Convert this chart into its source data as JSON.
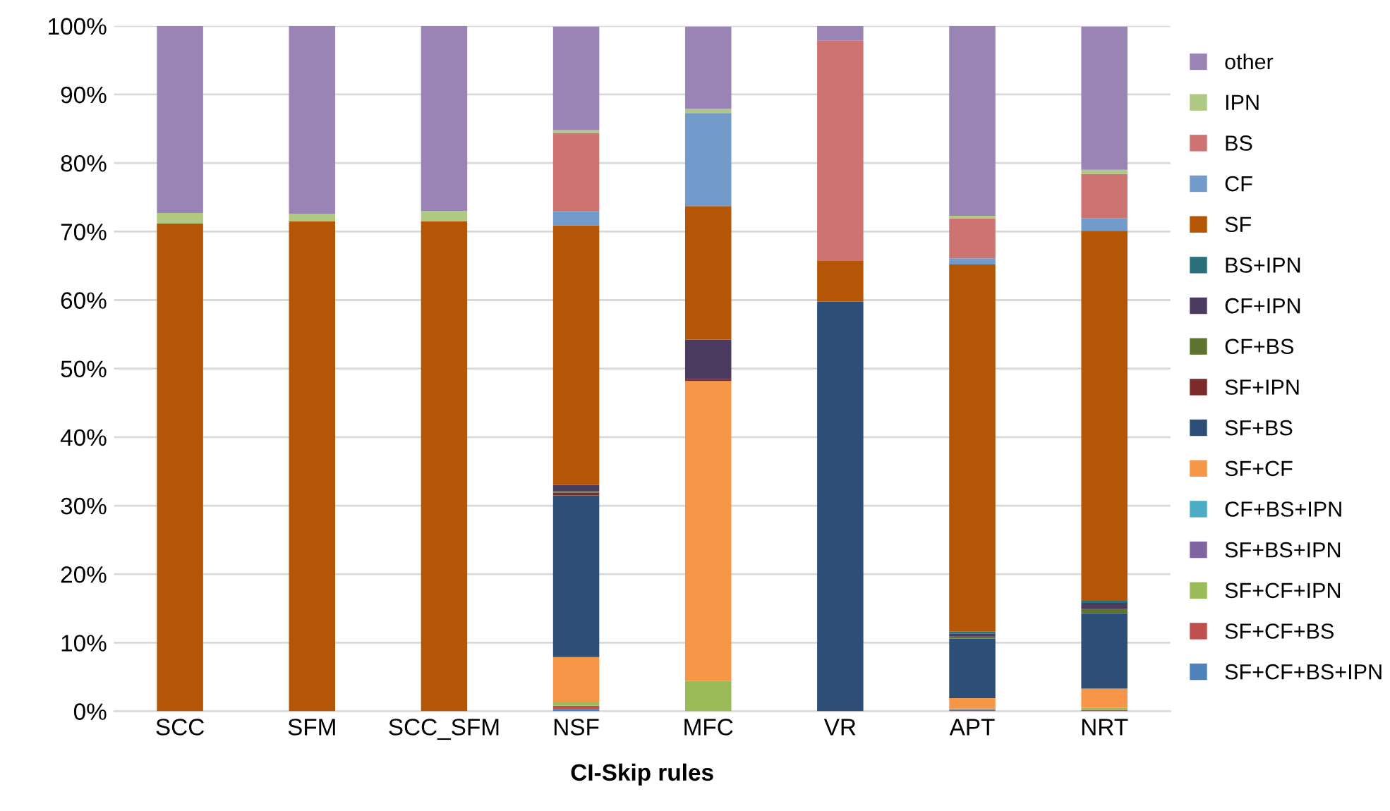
{
  "chart_data": {
    "type": "bar",
    "stacked": true,
    "xlabel": "CI-Skip rules",
    "categories": [
      "SCC",
      "SFM",
      "SCC_SFM",
      "NSF",
      "MFC",
      "VR",
      "APT",
      "NRT"
    ],
    "series": [
      {
        "name": "SF+CF+BS+IPN",
        "color": "#4f81bd",
        "values": [
          0,
          0,
          0,
          0.3,
          0,
          0,
          0,
          0
        ]
      },
      {
        "name": "SF+CF+BS",
        "color": "#c0504d",
        "values": [
          0,
          0,
          0,
          0.5,
          0,
          0,
          0.2,
          0.2
        ]
      },
      {
        "name": "SF+CF+IPN",
        "color": "#9bbb59",
        "values": [
          0,
          0,
          0,
          0.6,
          4.4,
          0,
          0,
          0.3
        ]
      },
      {
        "name": "SF+BS+IPN",
        "color": "#8064a2",
        "values": [
          0,
          0,
          0,
          0,
          0,
          0,
          0,
          0
        ]
      },
      {
        "name": "CF+BS+IPN",
        "color": "#4bacc6",
        "values": [
          0,
          0,
          0,
          0,
          0,
          0,
          0.2,
          0
        ]
      },
      {
        "name": "SF+CF",
        "color": "#f79646",
        "values": [
          0,
          0,
          0,
          6.5,
          43.8,
          0,
          1.5,
          2.8
        ]
      },
      {
        "name": "SF+BS",
        "color": "#2d4f77",
        "values": [
          0,
          0,
          0,
          23.6,
          0,
          59.8,
          8.7,
          11.0
        ]
      },
      {
        "name": "SF+IPN",
        "color": "#7c2b2b",
        "values": [
          0,
          0,
          0,
          0.4,
          0.3,
          0,
          0,
          0
        ]
      },
      {
        "name": "CF+BS",
        "color": "#5f7330",
        "values": [
          0,
          0,
          0,
          0.2,
          0,
          0,
          0.3,
          0.6
        ]
      },
      {
        "name": "CF+IPN",
        "color": "#4b3b61",
        "values": [
          0,
          0,
          0,
          0.9,
          5.7,
          0,
          0.4,
          0.9
        ]
      },
      {
        "name": "BS+IPN",
        "color": "#2a6f7a",
        "values": [
          0,
          0,
          0,
          0,
          0,
          0,
          0.3,
          0.3
        ]
      },
      {
        "name": "SF",
        "color": "#b55606",
        "values": [
          71.2,
          71.5,
          71.5,
          37.9,
          19.5,
          6.0,
          53.6,
          54.0
        ]
      },
      {
        "name": "CF",
        "color": "#729acb",
        "values": [
          0,
          0,
          0,
          2.1,
          13.6,
          0,
          0.9,
          1.8
        ]
      },
      {
        "name": "BS",
        "color": "#cd7371",
        "values": [
          0,
          0,
          0,
          11.4,
          0,
          32.1,
          5.8,
          6.5
        ]
      },
      {
        "name": "IPN",
        "color": "#afc982",
        "values": [
          1.5,
          1.1,
          1.5,
          0.4,
          0.6,
          0,
          0.4,
          0.6
        ]
      },
      {
        "name": "other",
        "color": "#9a84b6",
        "values": [
          27.3,
          27.4,
          27.0,
          15.1,
          12.0,
          2.1,
          27.7,
          20.9
        ]
      }
    ],
    "ylim": [
      0,
      100
    ],
    "yticks": [
      {
        "value": 0,
        "label": "0%"
      },
      {
        "value": 10,
        "label": "10%"
      },
      {
        "value": 20,
        "label": "20%"
      },
      {
        "value": 30,
        "label": "30%"
      },
      {
        "value": 40,
        "label": "40%"
      },
      {
        "value": 50,
        "label": "50%"
      },
      {
        "value": 60,
        "label": "60%"
      },
      {
        "value": 70,
        "label": "70%"
      },
      {
        "value": 80,
        "label": "80%"
      },
      {
        "value": 90,
        "label": "90%"
      },
      {
        "value": 100,
        "label": "100%"
      }
    ],
    "grid": "y",
    "legend": "right"
  }
}
